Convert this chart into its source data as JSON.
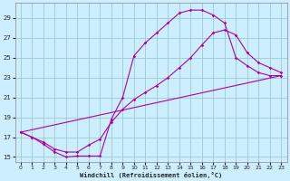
{
  "xlabel": "Windchill (Refroidissement éolien,°C)",
  "bg_color": "#cceeff",
  "line_color": "#aa00aa",
  "grid_color": "#99cccc",
  "xlim": [
    -0.5,
    23.5
  ],
  "ylim": [
    14.5,
    30.5
  ],
  "yticks": [
    15,
    17,
    19,
    21,
    23,
    25,
    27,
    29
  ],
  "xticks": [
    0,
    1,
    2,
    3,
    4,
    5,
    6,
    7,
    8,
    9,
    10,
    11,
    12,
    13,
    14,
    15,
    16,
    17,
    18,
    19,
    20,
    21,
    22,
    23
  ],
  "line1_x": [
    0,
    1,
    2,
    3,
    4,
    5,
    6,
    7,
    8,
    9,
    10,
    11,
    12,
    13,
    14,
    15,
    16,
    17,
    18,
    19,
    20,
    21,
    22,
    23
  ],
  "line1_y": [
    17.5,
    17.0,
    16.3,
    15.5,
    15.0,
    15.1,
    15.1,
    15.1,
    18.8,
    21.0,
    25.2,
    26.5,
    27.5,
    28.5,
    29.5,
    29.8,
    29.8,
    29.3,
    28.5,
    25.0,
    24.2,
    23.5,
    23.2,
    23.2
  ],
  "line2_x": [
    0,
    1,
    2,
    3,
    4,
    5,
    6,
    7,
    8,
    9,
    10,
    11,
    12,
    13,
    14,
    15,
    16,
    17,
    18,
    19,
    20,
    21,
    22,
    23
  ],
  "line2_y": [
    17.5,
    17.0,
    16.5,
    15.8,
    15.5,
    15.5,
    16.2,
    16.8,
    18.5,
    19.8,
    20.8,
    21.5,
    22.2,
    23.0,
    24.0,
    25.0,
    26.3,
    27.5,
    27.8,
    27.3,
    25.5,
    24.5,
    24.0,
    23.5
  ],
  "line3_x": [
    0,
    23
  ],
  "line3_y": [
    17.5,
    23.2
  ]
}
